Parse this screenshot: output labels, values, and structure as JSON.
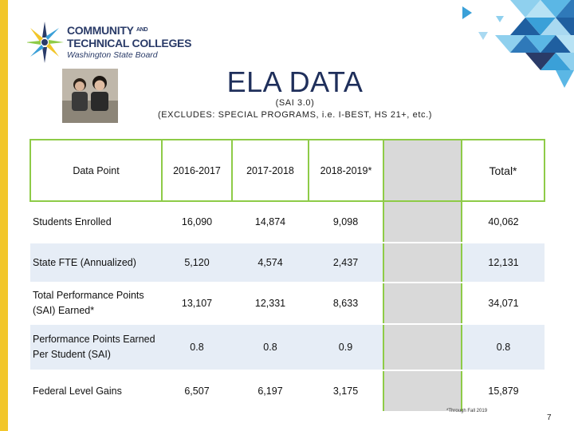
{
  "logo": {
    "line1": "COMMUNITY",
    "line2_main": "TECHNICAL COLLEGES",
    "line1_small": "AND",
    "line3": "Washington State Board"
  },
  "slide": {
    "title": "ELA DATA",
    "subtitle_line1": "(SAI 3.0)",
    "subtitle_line2": "(EXCLUDES: SPECIAL PROGRAMS, i.e. I-BEST, HS 21+, etc.)",
    "footnote": "*Through Fall 2019",
    "page_number": "7"
  },
  "colors": {
    "accent_yellow": "#f2c62a",
    "navy": "#1f2f5b",
    "table_border_green": "#8ecb47",
    "row_band_blue": "#e6edf6",
    "gray_column": "#d9d9d9"
  },
  "table": {
    "headers": [
      "Data Point",
      "2016-2017",
      "2017-2018",
      "2018-2019*",
      "",
      "Total*"
    ],
    "rows": [
      {
        "label": "Students Enrolled",
        "values": [
          "16,090",
          "14,874",
          "9,098",
          "",
          "40,062"
        ]
      },
      {
        "label": "State FTE (Annualized)",
        "values": [
          "5,120",
          "4,574",
          "2,437",
          "",
          "12,131"
        ]
      },
      {
        "label": "Total Performance Points (SAI)  Earned*",
        "values": [
          "13,107",
          "12,331",
          "8,633",
          "",
          "34,071"
        ]
      },
      {
        "label": "Performance Points Earned Per Student (SAI)",
        "values": [
          "0.8",
          "0.8",
          "0.9",
          "",
          "0.8"
        ]
      },
      {
        "label": "Federal Level Gains",
        "values": [
          "6,507",
          "6,197",
          "3,175",
          "",
          "15,879"
        ]
      }
    ]
  }
}
